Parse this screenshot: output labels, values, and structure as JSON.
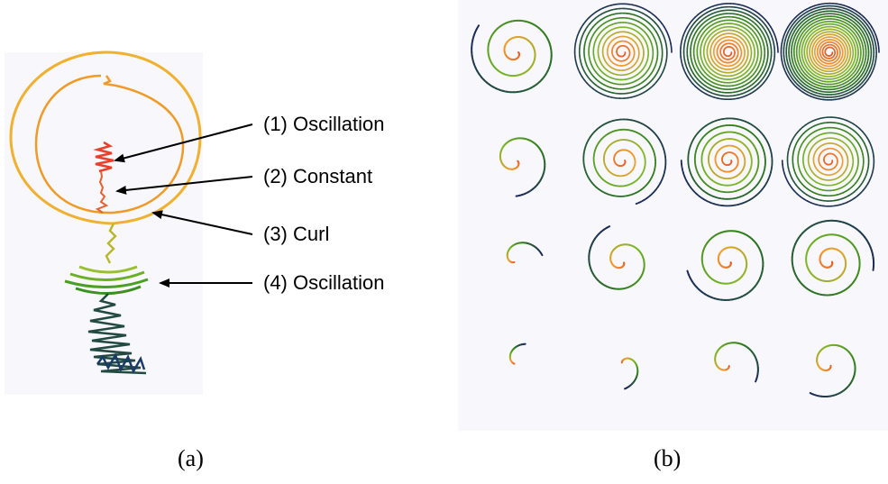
{
  "panel_a": {
    "caption": "(a)",
    "callouts": [
      {
        "label": "(1) Oscillation"
      },
      {
        "label": "(2) Constant"
      },
      {
        "label": "(3) Curl"
      },
      {
        "label": "(4) Oscillation"
      }
    ],
    "colors": {
      "background": "#f8f7fb",
      "ring_outer": "#f0b030",
      "ring_inner": "#f09a28",
      "oscillation_top": "#e8402a",
      "constant": "#e86030",
      "stem": "#b8b830",
      "oscillation_mid": "#4aa020",
      "tail": "#1a3a6a"
    }
  },
  "panel_b": {
    "caption": "(b)",
    "grid": {
      "rows": 4,
      "cols": 4
    },
    "colors": {
      "background": "#f8f7fb",
      "center": "#e85a2a",
      "mid_orange": "#f0a030",
      "mid_green": "#7ab828",
      "outer_green": "#2e7a20",
      "edge": "#1c2a5a"
    }
  }
}
